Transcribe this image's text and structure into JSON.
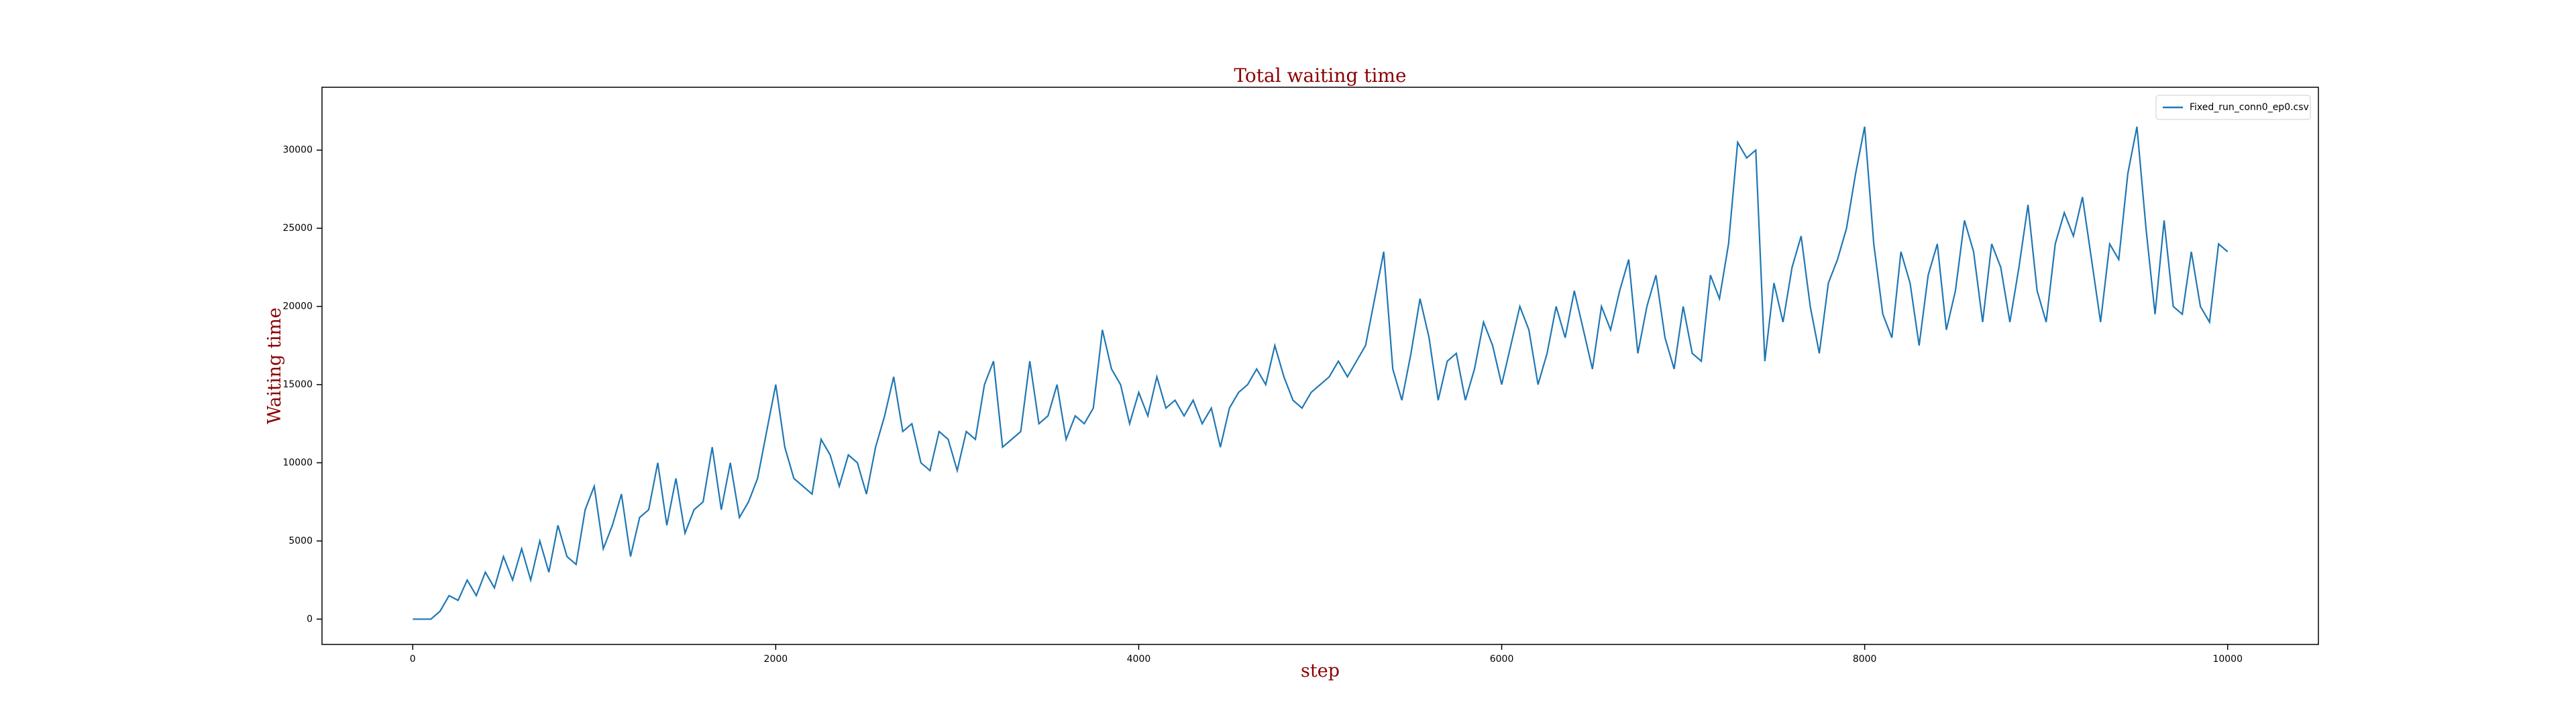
{
  "chart_data": {
    "type": "line",
    "title": "Total waiting time",
    "x_label": "step",
    "y_label": "Waiting time",
    "x": [
      0,
      50,
      100,
      150,
      200,
      250,
      300,
      350,
      400,
      450,
      500,
      550,
      600,
      650,
      700,
      750,
      800,
      850,
      900,
      950,
      1000,
      1050,
      1100,
      1150,
      1200,
      1250,
      1300,
      1350,
      1400,
      1450,
      1500,
      1550,
      1600,
      1650,
      1700,
      1750,
      1800,
      1850,
      1900,
      1950,
      2000,
      2050,
      2100,
      2150,
      2200,
      2250,
      2300,
      2350,
      2400,
      2450,
      2500,
      2550,
      2600,
      2650,
      2700,
      2750,
      2800,
      2850,
      2900,
      2950,
      3000,
      3050,
      3100,
      3150,
      3200,
      3250,
      3300,
      3350,
      3400,
      3450,
      3500,
      3550,
      3600,
      3650,
      3700,
      3750,
      3800,
      3850,
      3900,
      3950,
      4000,
      4050,
      4100,
      4150,
      4200,
      4250,
      4300,
      4350,
      4400,
      4450,
      4500,
      4550,
      4600,
      4650,
      4700,
      4750,
      4800,
      4850,
      4900,
      4950,
      5000,
      5050,
      5100,
      5150,
      5200,
      5250,
      5300,
      5350,
      5400,
      5450,
      5500,
      5550,
      5600,
      5650,
      5700,
      5750,
      5800,
      5850,
      5900,
      5950,
      6000,
      6050,
      6100,
      6150,
      6200,
      6250,
      6300,
      6350,
      6400,
      6450,
      6500,
      6550,
      6600,
      6650,
      6700,
      6750,
      6800,
      6850,
      6900,
      6950,
      7000,
      7050,
      7100,
      7150,
      7200,
      7250,
      7300,
      7350,
      7400,
      7450,
      7500,
      7550,
      7600,
      7650,
      7700,
      7750,
      7800,
      7850,
      7900,
      7950,
      8000,
      8050,
      8100,
      8150,
      8200,
      8250,
      8300,
      8350,
      8400,
      8450,
      8500,
      8550,
      8600,
      8650,
      8700,
      8750,
      8800,
      8850,
      8900,
      8950,
      9000,
      9050,
      9100,
      9150,
      9200,
      9250,
      9300,
      9350,
      9400,
      9450,
      9500,
      9550,
      9600,
      9650,
      9700,
      9750,
      9800,
      9850,
      9900,
      9950,
      10000
    ],
    "series": [
      {
        "name": "Fixed_run_conn0_ep0.csv",
        "color": "#1f77b4",
        "values": [
          0,
          0,
          0,
          500,
          1500,
          1200,
          2500,
          1500,
          3000,
          2000,
          4000,
          2500,
          4500,
          2500,
          5000,
          3000,
          6000,
          4000,
          3500,
          7000,
          8500,
          4500,
          6000,
          8000,
          4000,
          6500,
          7000,
          10000,
          6000,
          9000,
          5500,
          7000,
          7500,
          11000,
          7000,
          10000,
          6500,
          7500,
          9000,
          12000,
          15000,
          11000,
          9000,
          8500,
          8000,
          11500,
          10500,
          8500,
          10500,
          10000,
          8000,
          11000,
          13000,
          15500,
          12000,
          12500,
          10000,
          9500,
          12000,
          11500,
          9500,
          12000,
          11500,
          15000,
          16500,
          11000,
          11500,
          12000,
          16500,
          12500,
          13000,
          15000,
          11500,
          13000,
          12500,
          13500,
          18500,
          16000,
          15000,
          12500,
          14500,
          13000,
          15500,
          13500,
          14000,
          13000,
          14000,
          12500,
          13500,
          11000,
          13500,
          14500,
          15000,
          16000,
          15000,
          17500,
          15500,
          14000,
          13500,
          14500,
          15000,
          15500,
          16500,
          15500,
          16500,
          17500,
          20500,
          23500,
          16000,
          14000,
          17000,
          20500,
          18000,
          14000,
          16500,
          17000,
          14000,
          16000,
          19000,
          17500,
          15000,
          17500,
          20000,
          18500,
          15000,
          17000,
          20000,
          18000,
          21000,
          18500,
          16000,
          20000,
          18500,
          21000,
          23000,
          17000,
          20000,
          22000,
          18000,
          16000,
          20000,
          17000,
          16500,
          22000,
          20500,
          24000,
          30500,
          29500,
          30000,
          16500,
          21500,
          19000,
          22500,
          24500,
          20000,
          17000,
          21500,
          23000,
          25000,
          28500,
          31500,
          24000,
          19500,
          18000,
          23500,
          21500,
          17500,
          22000,
          24000,
          18500,
          21000,
          25500,
          23500,
          19000,
          24000,
          22500,
          19000,
          22500,
          26500,
          21000,
          19000,
          24000,
          26000,
          24500,
          27000,
          23000,
          19000,
          24000,
          23000,
          28500,
          31500,
          25000,
          19500,
          25500,
          20000,
          19500,
          23500,
          20000,
          19000,
          24000,
          23500
        ]
      }
    ],
    "xlim": [
      -500,
      10500
    ],
    "xticks": [
      0,
      2000,
      4000,
      6000,
      8000,
      10000
    ],
    "ylim": [
      -1620,
      34020
    ],
    "yticks": [
      0,
      5000,
      10000,
      15000,
      20000,
      25000,
      30000
    ],
    "grid": false,
    "legend": "upper right"
  }
}
